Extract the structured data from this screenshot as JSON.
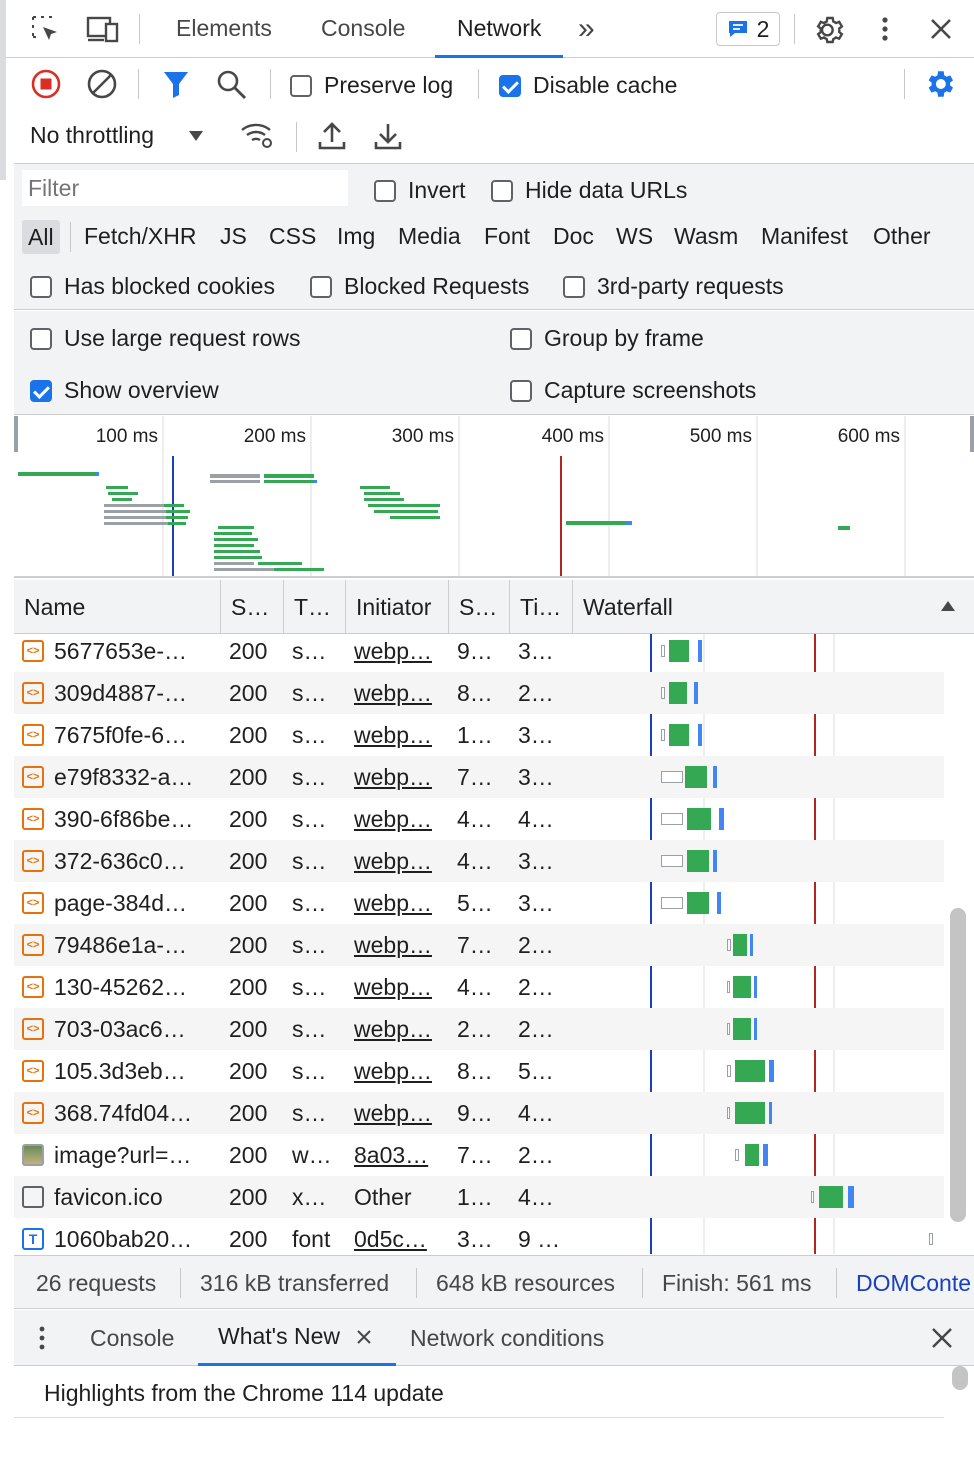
{
  "tabs": {
    "elements": "Elements",
    "console": "Console",
    "network": "Network",
    "more": "»",
    "issues_count": "2"
  },
  "toolbar": {
    "preserve_log": "Preserve log",
    "disable_cache": "Disable cache",
    "throttling": "No throttling"
  },
  "filter": {
    "placeholder": "Filter",
    "invert": "Invert",
    "hide_data_urls": "Hide data URLs"
  },
  "types": [
    "All",
    "Fetch/XHR",
    "JS",
    "CSS",
    "Img",
    "Media",
    "Font",
    "Doc",
    "WS",
    "Wasm",
    "Manifest",
    "Other"
  ],
  "blocked": {
    "has_blocked_cookies": "Has blocked cookies",
    "blocked_requests": "Blocked Requests",
    "third_party": "3rd-party requests"
  },
  "settings": {
    "large_rows": "Use large request rows",
    "group_by_frame": "Group by frame",
    "show_overview": "Show overview",
    "capture_screenshots": "Capture screenshots"
  },
  "overview_ticks": [
    "100 ms",
    "200 ms",
    "300 ms",
    "400 ms",
    "500 ms",
    "600 ms"
  ],
  "columns": {
    "name": "Name",
    "status": "S…",
    "type": "T…",
    "initiator": "Initiator",
    "size": "S…",
    "time": "Ti…",
    "waterfall": "Waterfall"
  },
  "rows": [
    {
      "name": "5677653e-…",
      "status": "200",
      "type": "s…",
      "initiator": "webp…",
      "size": "9…",
      "time": "3…",
      "icon": "script"
    },
    {
      "name": "309d4887-…",
      "status": "200",
      "type": "s…",
      "initiator": "webp…",
      "size": "8…",
      "time": "2…",
      "icon": "script"
    },
    {
      "name": "7675f0fe-6…",
      "status": "200",
      "type": "s…",
      "initiator": "webp…",
      "size": "1…",
      "time": "3…",
      "icon": "script"
    },
    {
      "name": "e79f8332-a…",
      "status": "200",
      "type": "s…",
      "initiator": "webp…",
      "size": "7…",
      "time": "3…",
      "icon": "script"
    },
    {
      "name": "390-6f86be…",
      "status": "200",
      "type": "s…",
      "initiator": "webp…",
      "size": "4…",
      "time": "4…",
      "icon": "script"
    },
    {
      "name": "372-636c0…",
      "status": "200",
      "type": "s…",
      "initiator": "webp…",
      "size": "4…",
      "time": "3…",
      "icon": "script"
    },
    {
      "name": "page-384d…",
      "status": "200",
      "type": "s…",
      "initiator": "webp…",
      "size": "5…",
      "time": "3…",
      "icon": "script"
    },
    {
      "name": "79486e1a-…",
      "status": "200",
      "type": "s…",
      "initiator": "webp…",
      "size": "7…",
      "time": "2…",
      "icon": "script"
    },
    {
      "name": "130-45262…",
      "status": "200",
      "type": "s…",
      "initiator": "webp…",
      "size": "4…",
      "time": "2…",
      "icon": "script"
    },
    {
      "name": "703-03ac6…",
      "status": "200",
      "type": "s…",
      "initiator": "webp…",
      "size": "2…",
      "time": "2…",
      "icon": "script"
    },
    {
      "name": "105.3d3eb…",
      "status": "200",
      "type": "s…",
      "initiator": "webp…",
      "size": "8…",
      "time": "5…",
      "icon": "script"
    },
    {
      "name": "368.74fd04…",
      "status": "200",
      "type": "s…",
      "initiator": "webp…",
      "size": "9…",
      "time": "4…",
      "icon": "script"
    },
    {
      "name": "image?url=…",
      "status": "200",
      "type": "w…",
      "initiator": "8a03…",
      "size": "7…",
      "time": "2…",
      "icon": "image"
    },
    {
      "name": "favicon.ico",
      "status": "200",
      "type": "x…",
      "initiator": "Other",
      "size": "1…",
      "time": "4…",
      "icon": "doc"
    },
    {
      "name": "1060bab20…",
      "status": "200",
      "type": "font",
      "initiator": "0d5c…",
      "size": "3…",
      "time": "9 …",
      "icon": "font"
    }
  ],
  "status": {
    "requests": "26 requests",
    "transferred": "316 kB transferred",
    "resources": "648 kB resources",
    "finish": "Finish: 561 ms",
    "domcontent": "DOMConte"
  },
  "drawer": {
    "console": "Console",
    "whats_new": "What's New",
    "network_conditions": "Network conditions",
    "highlight": "Highlights from the Chrome 114 update"
  },
  "colors": {
    "accent": "#1a73e8",
    "record": "#d93025",
    "bar_green": "#34a853",
    "bar_blue": "#4285f4",
    "bar_gray": "#9aa0a6",
    "dcl_line": "#1a3fbf",
    "load_line": "#b3261e"
  }
}
